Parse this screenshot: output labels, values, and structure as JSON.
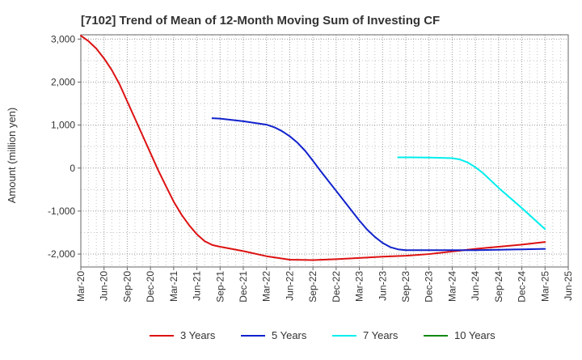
{
  "chart_data": {
    "type": "line",
    "title": "[7102]  Trend of Mean of 12-Month Moving Sum of Investing CF",
    "xlabel": "",
    "ylabel": "Amount (million yen)",
    "ylim": [
      -2300,
      3100
    ],
    "yticks": [
      3000,
      2000,
      1000,
      0,
      -1000,
      -2000
    ],
    "ytick_labels": [
      "3,000",
      "2,000",
      "1,000",
      "0",
      "-1,000",
      "-2,000"
    ],
    "x_start": "Mar-20",
    "x_end": "Jun-25",
    "xtick_labels": [
      "Mar-20",
      "Jun-20",
      "Sep-20",
      "Dec-20",
      "Mar-21",
      "Jun-21",
      "Sep-21",
      "Dec-21",
      "Mar-22",
      "Jun-22",
      "Sep-22",
      "Dec-22",
      "Mar-23",
      "Jun-23",
      "Sep-23",
      "Dec-23",
      "Mar-24",
      "Jun-24",
      "Sep-24",
      "Dec-24",
      "Mar-25",
      "Jun-25"
    ],
    "grid": true,
    "legend_position": "bottom",
    "series": [
      {
        "name": "3 Years",
        "color": "#dd1111",
        "x": [
          "Mar-20",
          "Apr-20",
          "May-20",
          "Jun-20",
          "Jul-20",
          "Aug-20",
          "Sep-20",
          "Oct-20",
          "Nov-20",
          "Dec-20",
          "Jan-21",
          "Feb-21",
          "Mar-21",
          "Apr-21",
          "May-21",
          "Jun-21",
          "Jul-21",
          "Aug-21",
          "Sep-21",
          "Dec-21",
          "Mar-22",
          "Jun-22",
          "Sep-22",
          "Dec-22",
          "Mar-23",
          "Jun-23",
          "Sep-23",
          "Dec-23",
          "Mar-24",
          "Jun-24",
          "Sep-24",
          "Dec-24",
          "Mar-25"
        ],
        "values": [
          3080,
          2950,
          2780,
          2550,
          2280,
          1950,
          1550,
          1150,
          750,
          350,
          -50,
          -420,
          -780,
          -1080,
          -1330,
          -1540,
          -1700,
          -1790,
          -1830,
          -1930,
          -2050,
          -2130,
          -2140,
          -2120,
          -2090,
          -2060,
          -2040,
          -2000,
          -1940,
          -1880,
          -1830,
          -1780,
          -1720
        ]
      },
      {
        "name": "5 Years",
        "color": "#1122cc",
        "x": [
          "Aug-21",
          "Sep-21",
          "Dec-21",
          "Mar-22",
          "Apr-22",
          "May-22",
          "Jun-22",
          "Jul-22",
          "Aug-22",
          "Sep-22",
          "Oct-22",
          "Nov-22",
          "Dec-22",
          "Jan-23",
          "Feb-23",
          "Mar-23",
          "Apr-23",
          "May-23",
          "Jun-23",
          "Jul-23",
          "Aug-23",
          "Sep-23",
          "Dec-23",
          "Mar-24",
          "Jun-24",
          "Sep-24",
          "Dec-24",
          "Mar-25"
        ],
        "values": [
          1160,
          1150,
          1090,
          1010,
          950,
          860,
          740,
          590,
          400,
          170,
          -70,
          -300,
          -530,
          -760,
          -990,
          -1220,
          -1430,
          -1600,
          -1740,
          -1840,
          -1890,
          -1910,
          -1910,
          -1910,
          -1910,
          -1900,
          -1890,
          -1880
        ]
      },
      {
        "name": "7 Years",
        "color": "#00eeee",
        "x": [
          "Aug-23",
          "Sep-23",
          "Dec-23",
          "Mar-24",
          "Apr-24",
          "May-24",
          "Jun-24",
          "Jul-24",
          "Aug-24",
          "Sep-24",
          "Dec-24",
          "Mar-25"
        ],
        "values": [
          250,
          250,
          245,
          230,
          200,
          130,
          20,
          -120,
          -290,
          -460,
          -930,
          -1420
        ]
      },
      {
        "name": "10 Years",
        "color": "#118811",
        "x": [],
        "values": []
      }
    ]
  }
}
